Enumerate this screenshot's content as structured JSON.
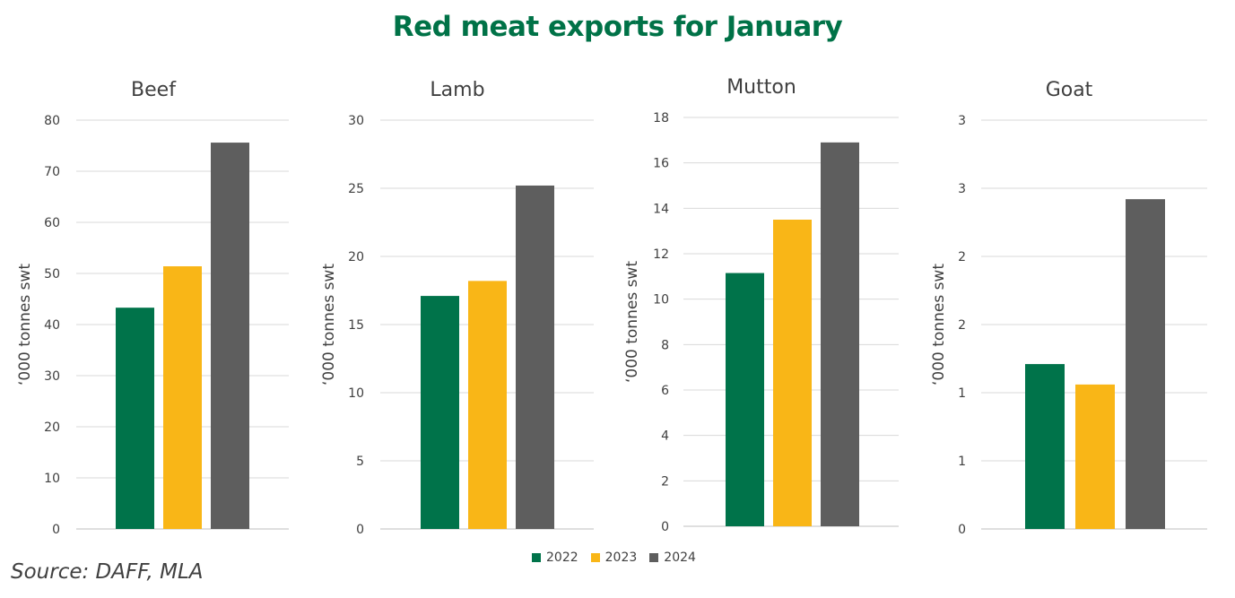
{
  "title": "Red meat exports for January",
  "source": "Source: DAFF, MLA",
  "colors": {
    "2022": "#00734A",
    "2023": "#F9B617",
    "2024": "#5E5E5E"
  },
  "legend": [
    {
      "label": "2022",
      "color": "#00734A"
    },
    {
      "label": "2023",
      "color": "#F9B617"
    },
    {
      "label": "2024",
      "color": "#5E5E5E"
    }
  ],
  "chart_data": [
    {
      "type": "bar",
      "title": "Beef",
      "ylabel": "‘000 tonnes swt",
      "ylim": [
        0,
        80
      ],
      "yticks": [
        "0",
        "10",
        "20",
        "30",
        "40",
        "50",
        "60",
        "70",
        "80"
      ],
      "grid": true,
      "series": [
        {
          "name": "2022",
          "values": [
            43.3
          ]
        },
        {
          "name": "2023",
          "values": [
            51.4
          ]
        },
        {
          "name": "2024",
          "values": [
            75.6
          ]
        }
      ]
    },
    {
      "type": "bar",
      "title": "Lamb",
      "ylabel": "‘000 tonnes swt",
      "ylim": [
        0,
        30
      ],
      "yticks": [
        "0",
        "5",
        "10",
        "15",
        "20",
        "25",
        "30"
      ],
      "grid": true,
      "series": [
        {
          "name": "2022",
          "values": [
            17.1
          ]
        },
        {
          "name": "2023",
          "values": [
            18.2
          ]
        },
        {
          "name": "2024",
          "values": [
            25.2
          ]
        }
      ]
    },
    {
      "type": "bar",
      "title": "Mutton",
      "ylabel": "‘000 tonnes swt",
      "ylim": [
        0,
        18
      ],
      "yticks": [
        "0",
        "2",
        "4",
        "6",
        "8",
        "10",
        "12",
        "14",
        "16",
        "18"
      ],
      "grid": true,
      "series": [
        {
          "name": "2022",
          "values": [
            11.15
          ]
        },
        {
          "name": "2023",
          "values": [
            13.5
          ]
        },
        {
          "name": "2024",
          "values": [
            16.9
          ]
        }
      ]
    },
    {
      "type": "bar",
      "title": "Goat",
      "ylabel": "‘000 tonnes swt",
      "ylim": [
        0,
        3
      ],
      "yticks": [
        "0",
        "1",
        "1",
        "2",
        "2",
        "3",
        "3"
      ],
      "grid": true,
      "series": [
        {
          "name": "2022",
          "values": [
            1.21
          ]
        },
        {
          "name": "2023",
          "values": [
            1.06
          ]
        },
        {
          "name": "2024",
          "values": [
            2.42
          ]
        }
      ]
    }
  ]
}
